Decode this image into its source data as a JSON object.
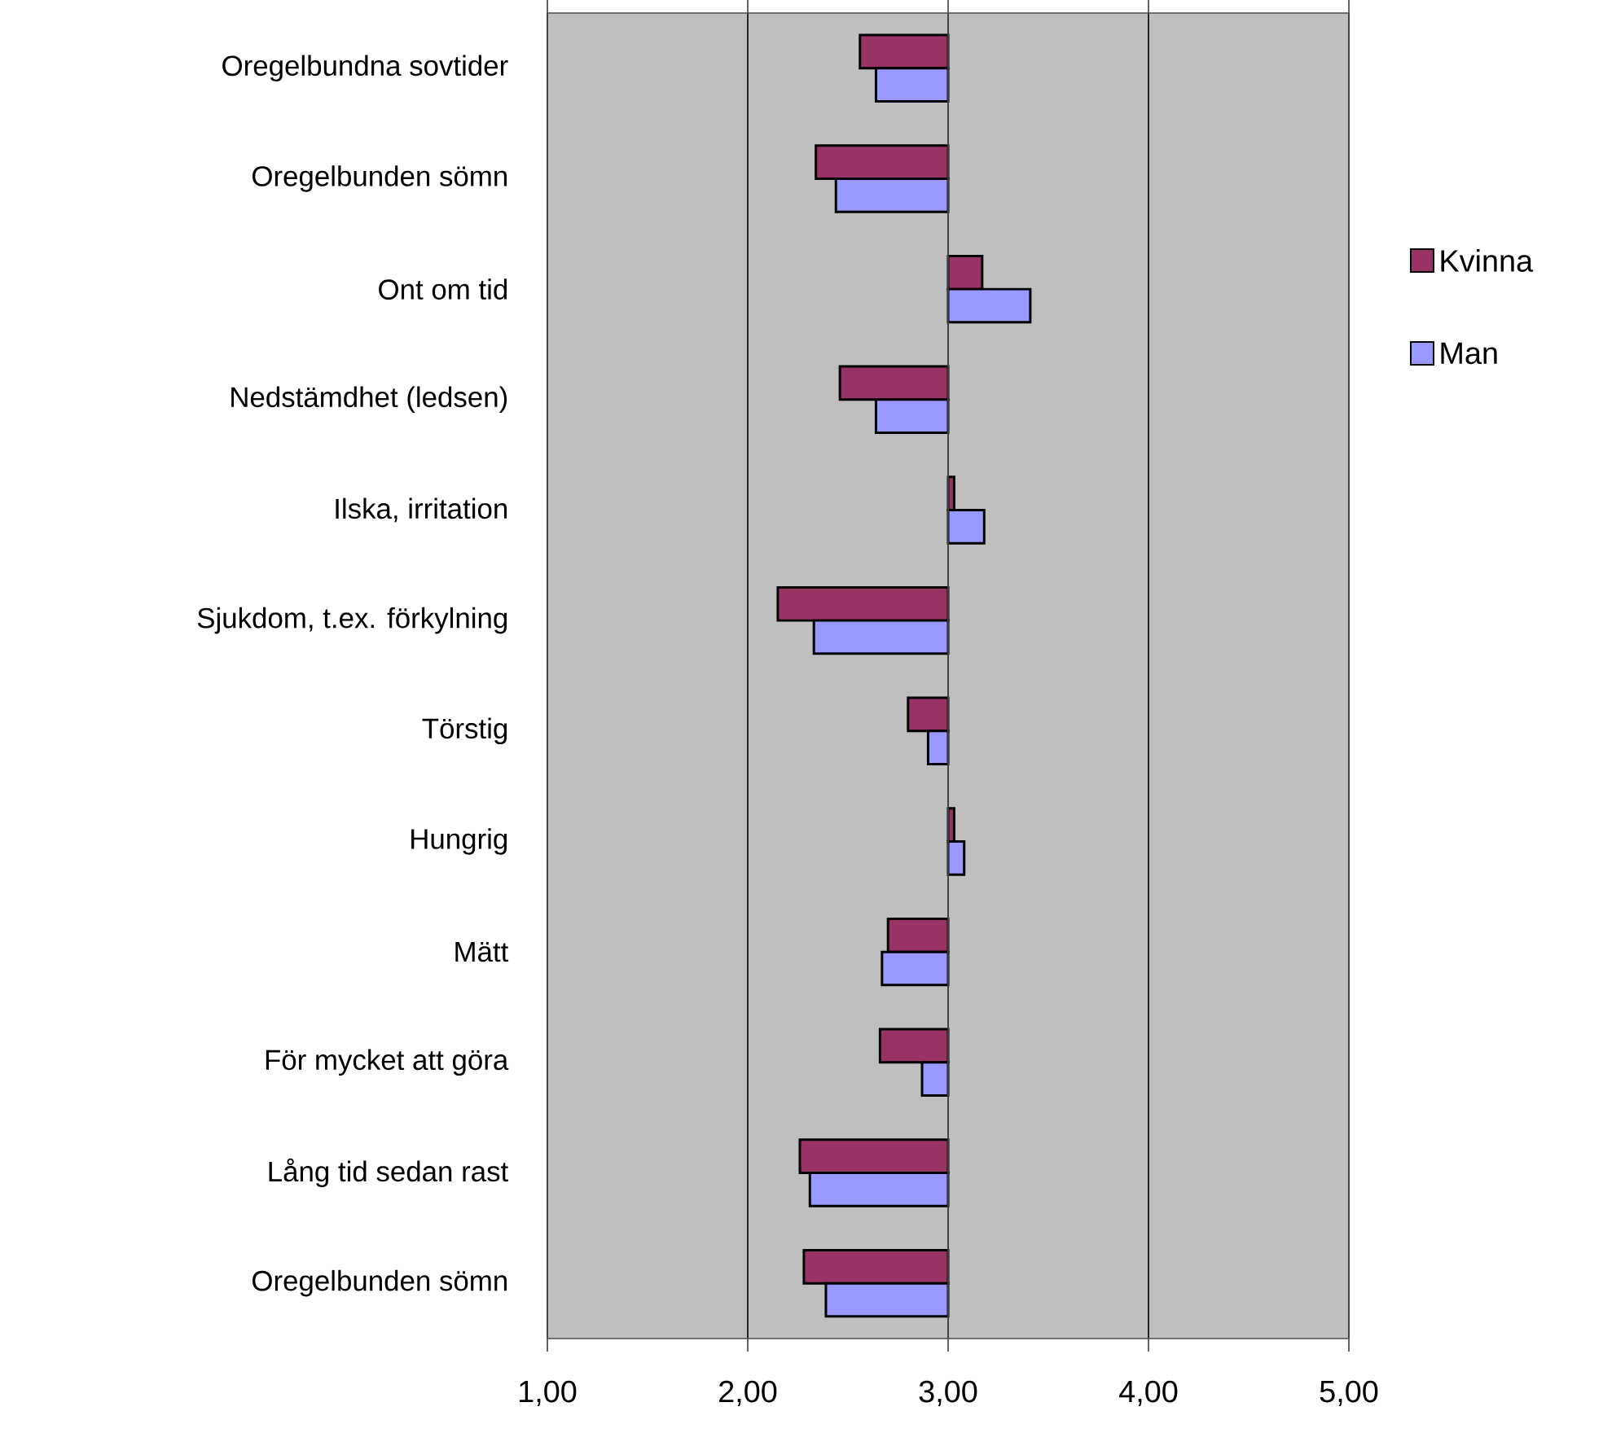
{
  "chart_data": {
    "type": "bar",
    "orientation": "horizontal",
    "categories": [
      "Oregelbundna sovtider",
      "Oregelbunden sömn",
      "Ont om tid",
      "Nedstämdhet (ledsen)",
      "Ilska, irritation",
      "Sjukdom, t.ex. förkylning",
      "Törstig",
      "Hungrig",
      "Mätt",
      "För mycket att göra",
      "Lång tid sedan rast",
      "Oregelbunden sömn"
    ],
    "series": [
      {
        "name": "Kvinna",
        "color": "#993366",
        "base": [
          3,
          3,
          3,
          3,
          3,
          3,
          3,
          3,
          3,
          3,
          3,
          3
        ],
        "values": [
          -0.44,
          -0.66,
          0.17,
          -0.54,
          0.03,
          -0.85,
          -0.2,
          0.03,
          -0.3,
          -0.34,
          -0.74,
          -0.72
        ]
      },
      {
        "name": "Man",
        "color": "#9999ff",
        "base": [
          3,
          3,
          3,
          3,
          3,
          3,
          3,
          3,
          3,
          3,
          3,
          3
        ],
        "values": [
          -0.36,
          -0.56,
          0.41,
          -0.36,
          0.18,
          -0.67,
          -0.1,
          0.08,
          -0.33,
          -0.13,
          -0.69,
          -0.61
        ]
      }
    ],
    "xlim": [
      1,
      5
    ],
    "xticks": [
      {
        "value": 1,
        "label": "1,00"
      },
      {
        "value": 2,
        "label": "2,00"
      },
      {
        "value": 3,
        "label": "3,00"
      },
      {
        "value": 4,
        "label": "4,00"
      },
      {
        "value": 5,
        "label": "5,00"
      }
    ],
    "ref_lines": [
      {
        "axis": "x",
        "value": 3
      }
    ],
    "grid": "x",
    "legend": "right"
  }
}
